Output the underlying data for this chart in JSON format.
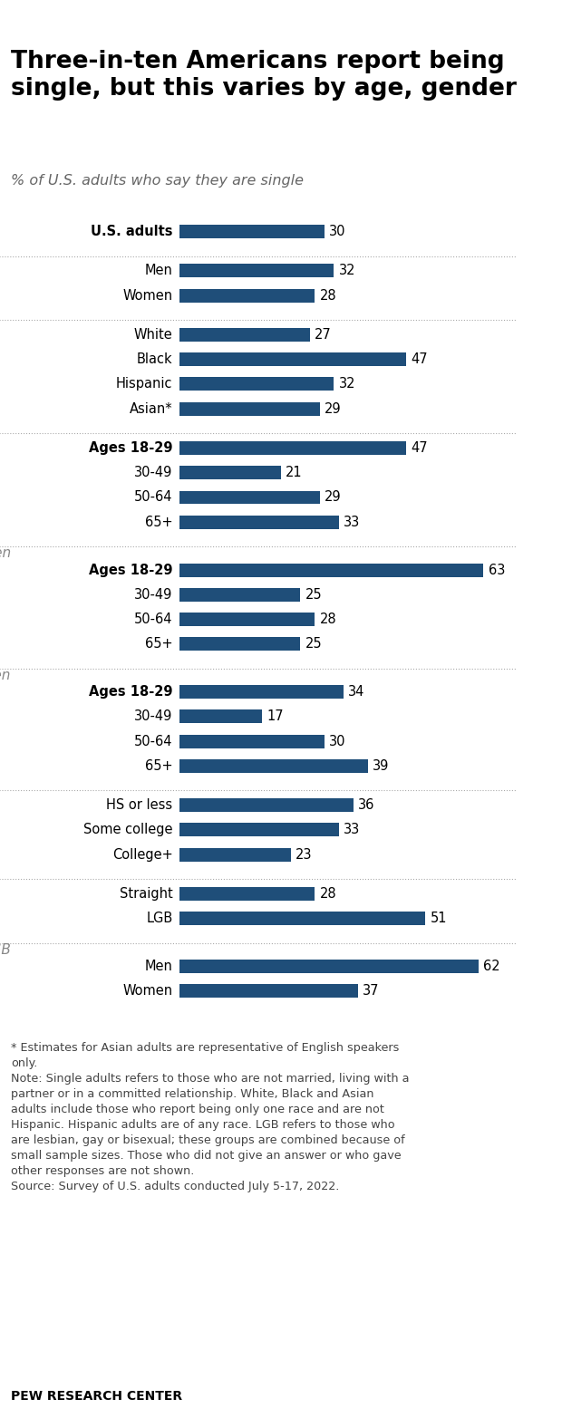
{
  "title": "Three-in-ten Americans report being\nsingle, but this varies by age, gender",
  "subtitle": "% of U.S. adults who say they are single",
  "bar_color": "#1f4e79",
  "background_color": "#ffffff",
  "xlim": [
    0,
    70
  ],
  "sections": [
    {
      "section_label": null,
      "bars": [
        {
          "label": "U.S. adults",
          "value": 30,
          "indent": false
        }
      ]
    },
    {
      "section_label": null,
      "bars": [
        {
          "label": "Men",
          "value": 32,
          "indent": true
        },
        {
          "label": "Women",
          "value": 28,
          "indent": true
        }
      ]
    },
    {
      "section_label": null,
      "bars": [
        {
          "label": "White",
          "value": 27,
          "indent": true
        },
        {
          "label": "Black",
          "value": 47,
          "indent": true
        },
        {
          "label": "Hispanic",
          "value": 32,
          "indent": true
        },
        {
          "label": "Asian*",
          "value": 29,
          "indent": true
        }
      ]
    },
    {
      "section_label": null,
      "bars": [
        {
          "label": "Ages 18-29",
          "value": 47,
          "indent": false
        },
        {
          "label": "30-49",
          "value": 21,
          "indent": true
        },
        {
          "label": "50-64",
          "value": 29,
          "indent": true
        },
        {
          "label": "65+",
          "value": 33,
          "indent": true
        }
      ]
    },
    {
      "section_label": "Men",
      "bars": [
        {
          "label": "Ages 18-29",
          "value": 63,
          "indent": false
        },
        {
          "label": "30-49",
          "value": 25,
          "indent": true
        },
        {
          "label": "50-64",
          "value": 28,
          "indent": true
        },
        {
          "label": "65+",
          "value": 25,
          "indent": true
        }
      ]
    },
    {
      "section_label": "Women",
      "bars": [
        {
          "label": "Ages 18-29",
          "value": 34,
          "indent": false
        },
        {
          "label": "30-49",
          "value": 17,
          "indent": true
        },
        {
          "label": "50-64",
          "value": 30,
          "indent": true
        },
        {
          "label": "65+",
          "value": 39,
          "indent": true
        }
      ]
    },
    {
      "section_label": null,
      "bars": [
        {
          "label": "HS or less",
          "value": 36,
          "indent": true
        },
        {
          "label": "Some college",
          "value": 33,
          "indent": true
        },
        {
          "label": "College+",
          "value": 23,
          "indent": true
        }
      ]
    },
    {
      "section_label": null,
      "bars": [
        {
          "label": "Straight",
          "value": 28,
          "indent": true
        },
        {
          "label": "LGB",
          "value": 51,
          "indent": true
        }
      ]
    },
    {
      "section_label": "LGB",
      "bars": [
        {
          "label": "Men",
          "value": 62,
          "indent": true
        },
        {
          "label": "Women",
          "value": 37,
          "indent": true
        }
      ]
    }
  ],
  "footnote": "* Estimates for Asian adults are representative of English speakers\nonly.\nNote: Single adults refers to those who are not married, living with a\npartner or in a committed relationship. White, Black and Asian\nadults include those who report being only one race and are not\nHispanic. Hispanic adults are of any race. LGB refers to those who\nare lesbian, gay or bisexual; these groups are combined because of\nsmall sample sizes. Those who did not give an answer or who gave\nother responses are not shown.\nSource: Survey of U.S. adults conducted July 5-17, 2022.",
  "source_label": "PEW RESEARCH CENTER"
}
